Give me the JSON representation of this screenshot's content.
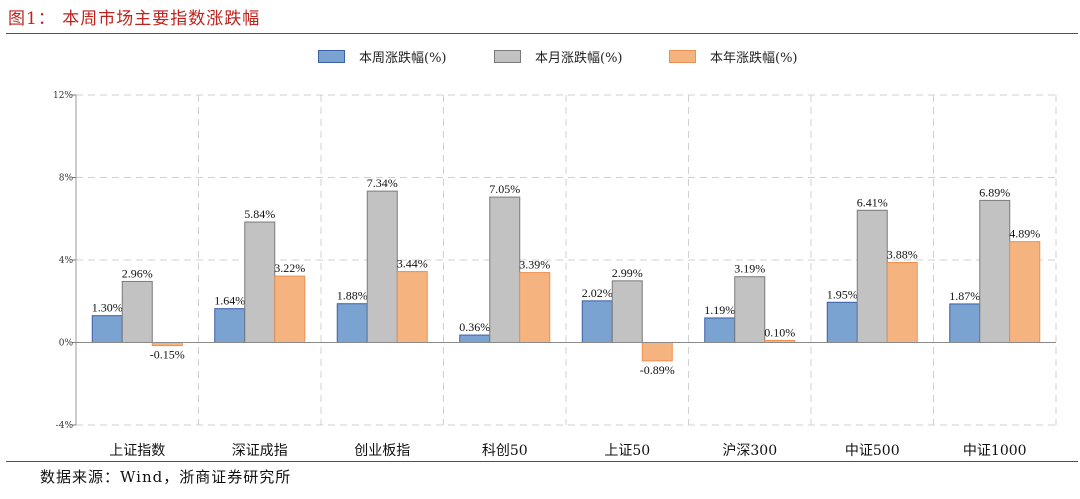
{
  "figure": {
    "title": "图1： 本周市场主要指数涨跌幅",
    "source": "数据来源：Wind，浙商证券研究所"
  },
  "chart_data": {
    "type": "bar",
    "categories": [
      "上证指数",
      "深证成指",
      "创业板指",
      "科创50",
      "上证50",
      "沪深300",
      "中证500",
      "中证1000"
    ],
    "series": [
      {
        "name": "本周涨跌幅(%)",
        "values": [
          1.3,
          1.64,
          1.88,
          0.36,
          2.02,
          1.19,
          1.95,
          1.87
        ],
        "labels": [
          "1.30%",
          "1.64%",
          "1.88%",
          "0.36%",
          "2.02%",
          "1.19%",
          "1.95%",
          "1.87%"
        ],
        "fill": "#7ba3d1",
        "stroke": "#3a5ea8"
      },
      {
        "name": "本月涨跌幅(%)",
        "values": [
          2.96,
          5.84,
          7.34,
          7.05,
          2.99,
          3.19,
          6.41,
          6.89
        ],
        "labels": [
          "2.96%",
          "5.84%",
          "7.34%",
          "7.05%",
          "2.99%",
          "3.19%",
          "6.41%",
          "6.89%"
        ],
        "fill": "#c2c2c2",
        "stroke": "#7a7a7a"
      },
      {
        "name": "本年涨跌幅(%)",
        "values": [
          -0.15,
          3.22,
          3.44,
          3.39,
          -0.89,
          0.1,
          3.88,
          4.89
        ],
        "labels": [
          "-0.15%",
          "3.22%",
          "3.44%",
          "3.39%",
          "-0.89%",
          "0.10%",
          "3.88%",
          "4.89%"
        ],
        "fill": "#f5b37f",
        "stroke": "#ef8f52"
      }
    ],
    "y_ticks": [
      -4,
      0,
      4,
      8,
      12
    ],
    "y_tick_labels": [
      "-4%",
      "0%",
      "4%",
      "8%",
      "12%"
    ],
    "ylim": [
      -4,
      12
    ],
    "grid": true,
    "legend_position": "top"
  }
}
